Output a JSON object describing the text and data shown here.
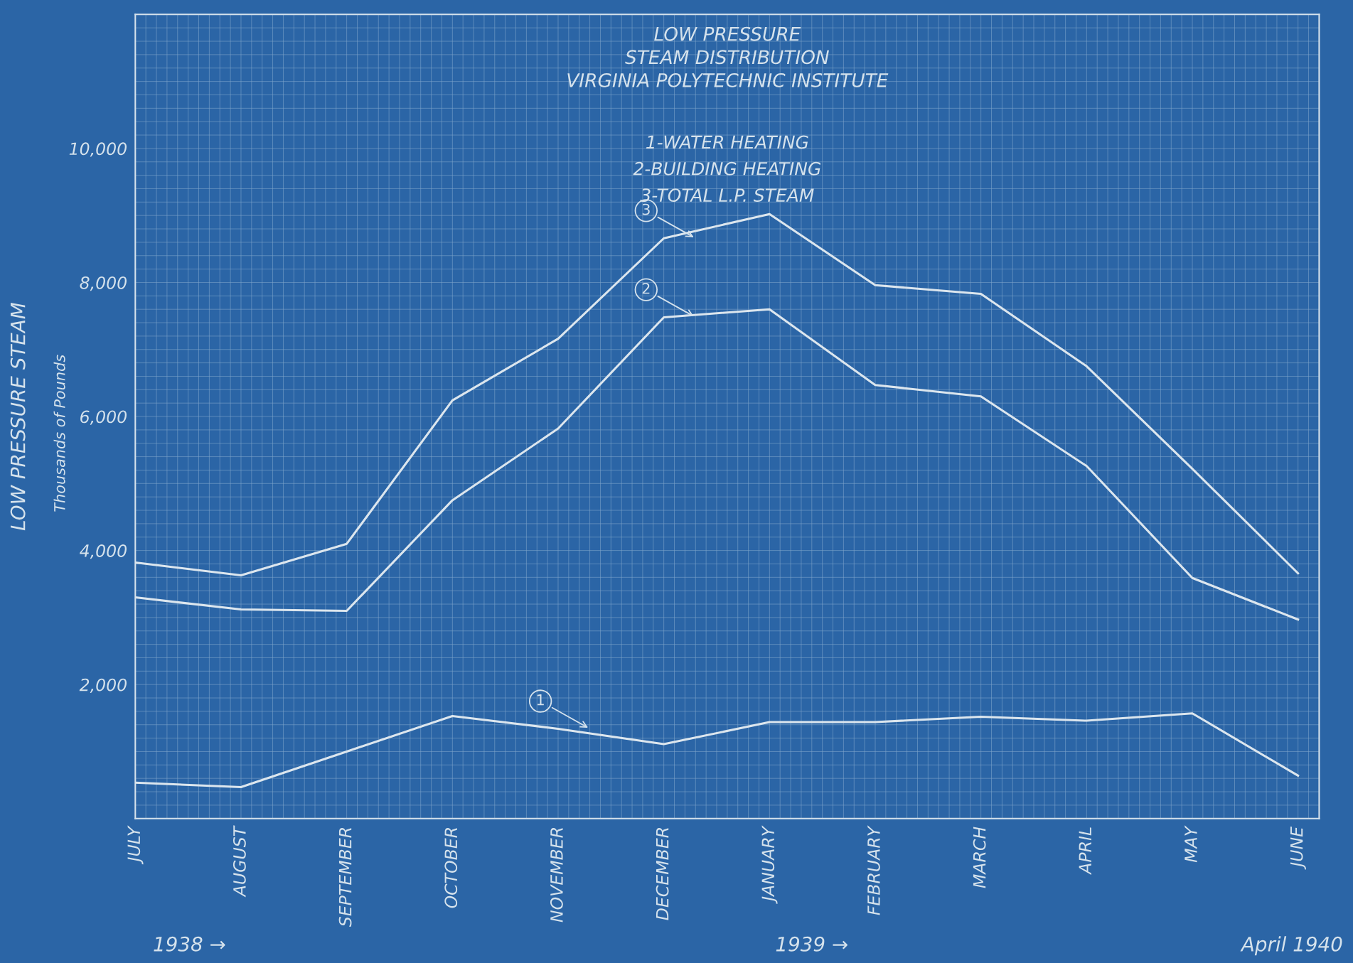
{
  "chart_data": {
    "type": "line",
    "title": "LOW PRESSURE\nSTEAM DISTRIBUTION\nVIRGINIA POLYTECHNIC INSTITUTE",
    "ylabel": "LOW PRESSURE STEAM",
    "subtitle": "Thousands of Pounds",
    "categories": [
      "JULY",
      "AUGUST",
      "SEPTEMBER",
      "OCTOBER",
      "NOVEMBER",
      "DECEMBER",
      "JANUARY",
      "FEBRUARY",
      "MARCH",
      "APRIL",
      "MAY",
      "JUNE"
    ],
    "series": [
      {
        "color": "#dce6ee",
        "values": [
          535,
          470,
          1000,
          1530,
          1340,
          1110,
          1440,
          1440,
          1520,
          1460,
          1570,
          640
        ]
      },
      {
        "color": "#dce6ee",
        "values": [
          3300,
          3120,
          3100,
          4750,
          5820,
          7480,
          7600,
          6470,
          6300,
          5260,
          3590,
          2970
        ]
      },
      {
        "color": "#dce6ee",
        "values": [
          3820,
          3630,
          4100,
          6240,
          7160,
          8660,
          9020,
          7960,
          7830,
          6750,
          5220,
          3660
        ]
      }
    ],
    "ylim": [
      0,
      12000
    ],
    "yticks": [
      {
        "value": 2000,
        "label": "2,000"
      },
      {
        "value": 4000,
        "label": "4,000"
      },
      {
        "value": 6000,
        "label": "6,000"
      },
      {
        "value": 8000,
        "label": "8,000"
      },
      {
        "value": 10000,
        "label": "10,000"
      }
    ],
    "grid": true,
    "line_style": "solid",
    "marker": "none",
    "annotations": [
      "1-WATER HEATING",
      "2-BUILDING HEATING",
      "3-TOTAL L.P. STEAM",
      {
        "text": "1",
        "x": "NOVEMBER",
        "y": 1340
      },
      {
        "text": "2",
        "x": "DECEMBER",
        "y": 7480
      },
      {
        "text": "3",
        "x": "DECEMBER",
        "y": 8660
      },
      "1938 →",
      "1939 →",
      "April 1940"
    ]
  }
}
